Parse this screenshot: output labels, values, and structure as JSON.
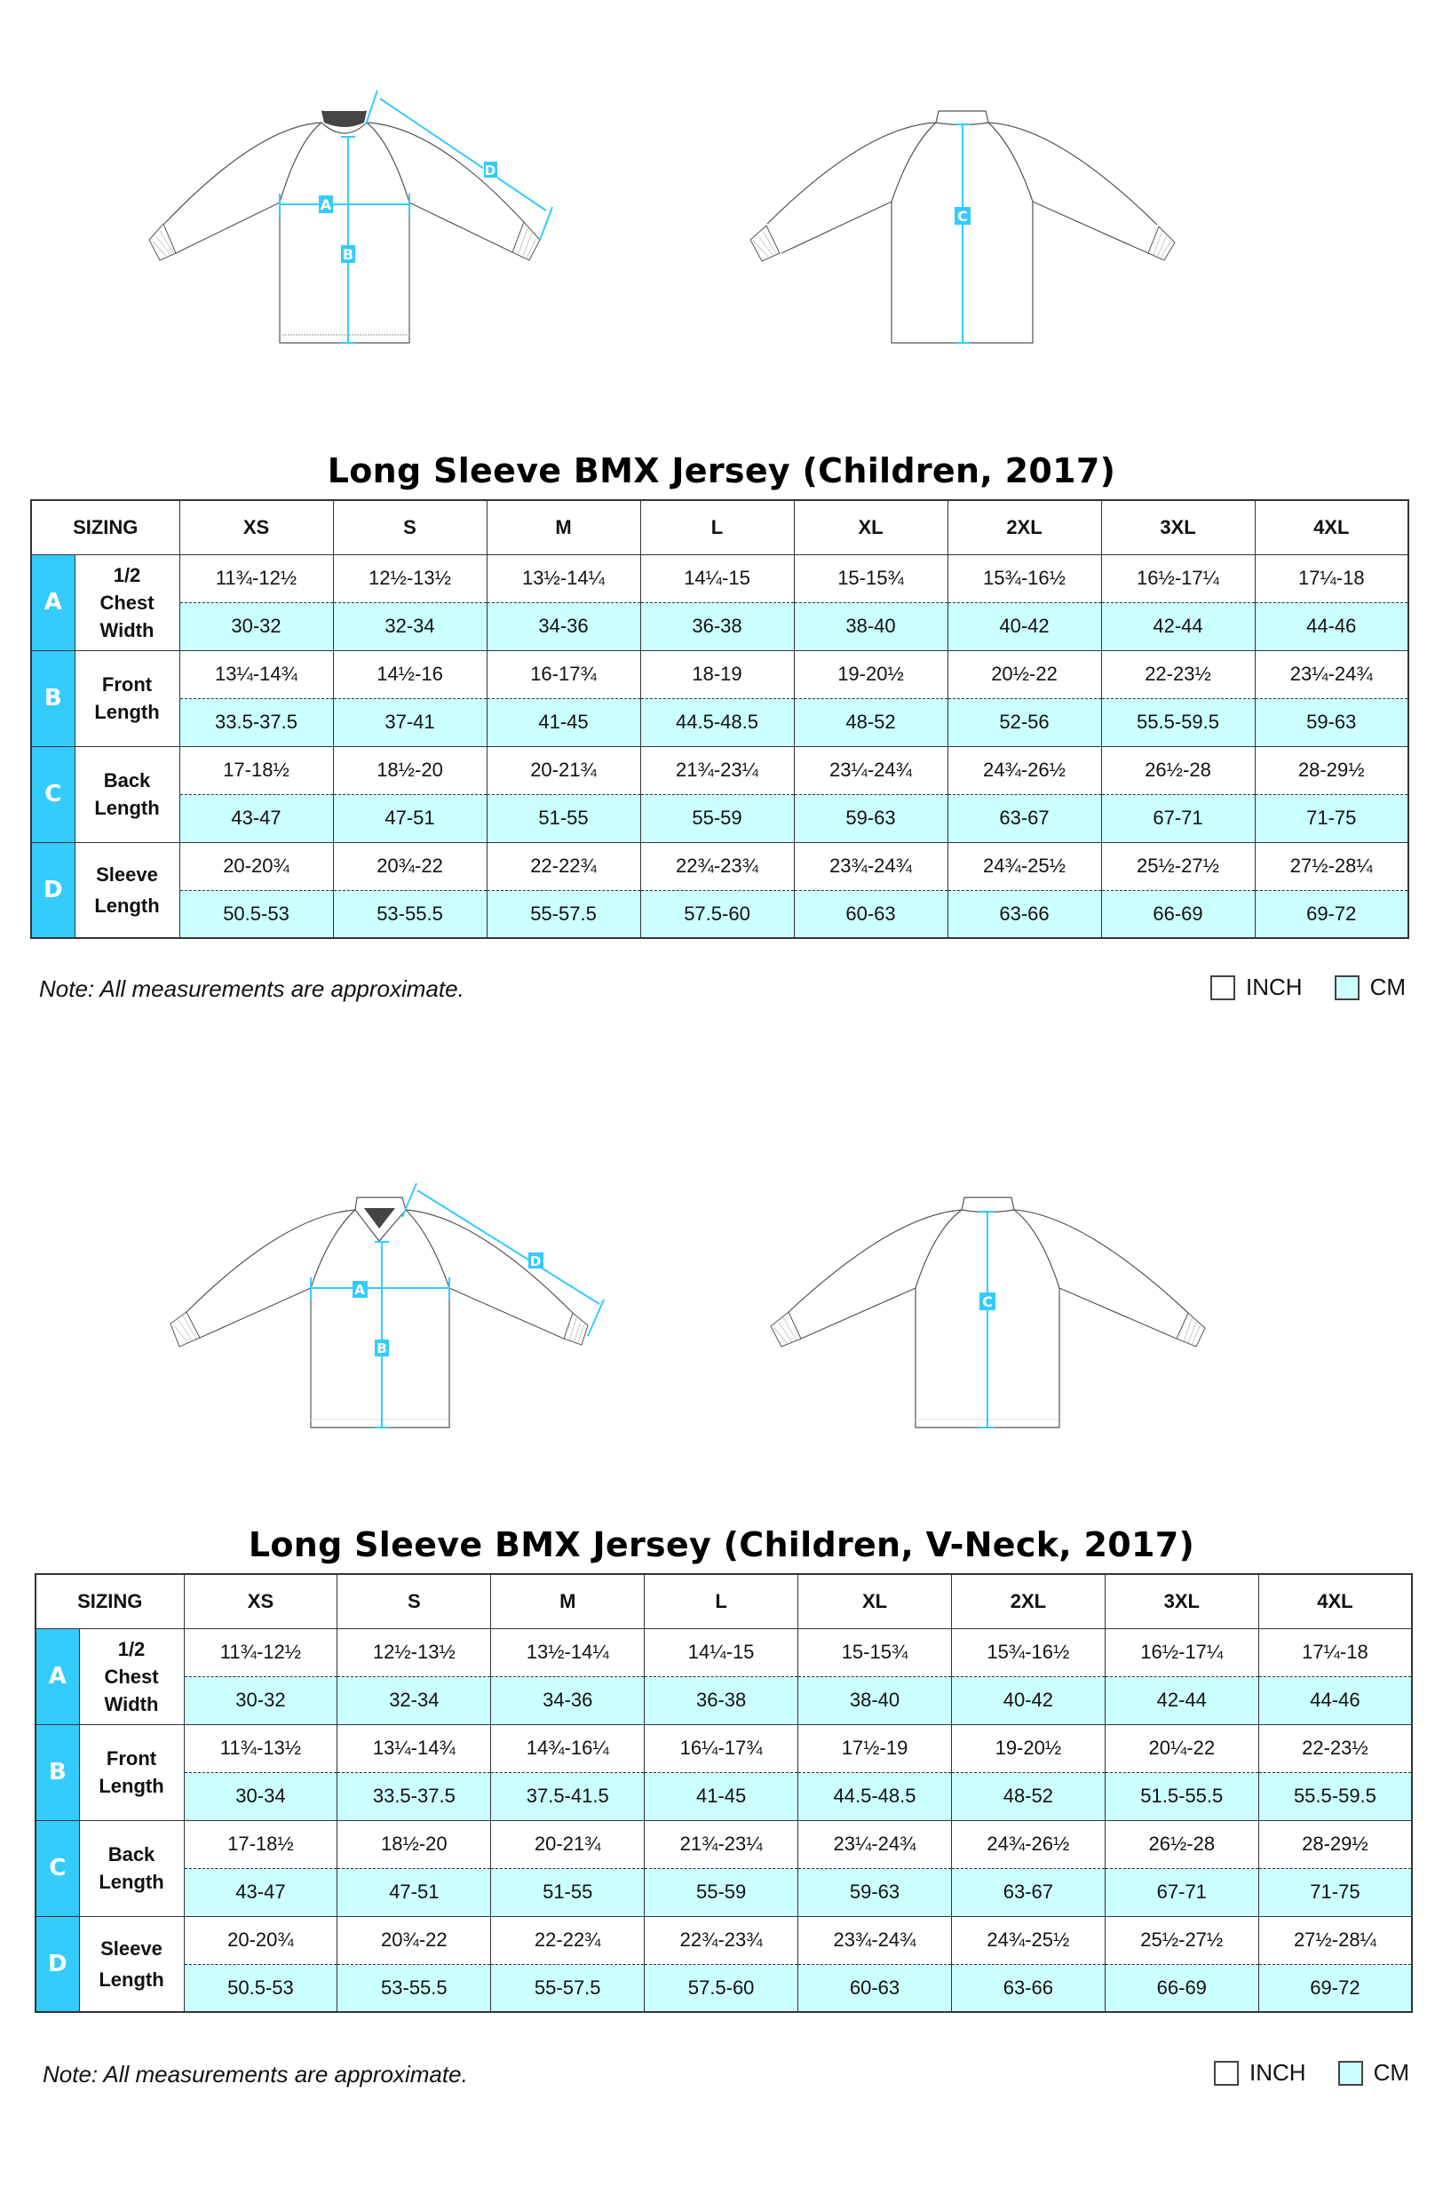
{
  "colors": {
    "accent_blue": "#33ccfd",
    "cm_row_bg": "#ccffff",
    "inch_row_bg": "#ffffff",
    "border": "#333333"
  },
  "diagrams": {
    "crew_neck": {
      "front": {
        "labels": [
          "A",
          "B",
          "D"
        ]
      },
      "back": {
        "labels": [
          "C"
        ]
      }
    },
    "v_neck": {
      "front": {
        "labels": [
          "A",
          "B",
          "D"
        ]
      },
      "back": {
        "labels": [
          "C"
        ]
      }
    }
  },
  "charts": [
    {
      "title": "Long Sleeve BMX Jersey (Children, 2017)",
      "header": {
        "sizing": "SIZING",
        "sizes": [
          "XS",
          "S",
          "M",
          "L",
          "XL",
          "2XL",
          "3XL",
          "4XL"
        ]
      },
      "rows": [
        {
          "letter": "A",
          "label_lines": [
            "1/2",
            "Chest",
            "Width"
          ],
          "inch": [
            "11¾-12½",
            "12½-13½",
            "13½-14¼",
            "14¼-15",
            "15-15¾",
            "15¾-16½",
            "16½-17¼",
            "17¼-18"
          ],
          "cm": [
            "30-32",
            "32-34",
            "34-36",
            "36-38",
            "38-40",
            "40-42",
            "42-44",
            "44-46"
          ]
        },
        {
          "letter": "B",
          "label_lines": [
            "Front",
            "Length"
          ],
          "inch": [
            "13¼-14¾",
            "14½-16",
            "16-17¾",
            "18-19",
            "19-20½",
            "20½-22",
            "22-23½",
            "23¼-24¾"
          ],
          "cm": [
            "33.5-37.5",
            "37-41",
            "41-45",
            "44.5-48.5",
            "48-52",
            "52-56",
            "55.5-59.5",
            "59-63"
          ]
        },
        {
          "letter": "C",
          "label_lines": [
            "Back",
            "Length"
          ],
          "inch": [
            "17-18½",
            "18½-20",
            "20-21¾",
            "21¾-23¼",
            "23¼-24¾",
            "24¾-26½",
            "26½-28",
            "28-29½"
          ],
          "cm": [
            "43-47",
            "47-51",
            "51-55",
            "55-59",
            "59-63",
            "63-67",
            "67-71",
            "71-75"
          ]
        },
        {
          "letter": "D",
          "label_lines": [
            "Sleeve",
            "Length"
          ],
          "inch": [
            "20-20¾",
            "20¾-22",
            "22-22¾",
            "22¾-23¾",
            "23¾-24¾",
            "24¾-25½",
            "25½-27½",
            "27½-28¼"
          ],
          "cm": [
            "50.5-53",
            "53-55.5",
            "55-57.5",
            "57.5-60",
            "60-63",
            "63-66",
            "66-69",
            "69-72"
          ]
        }
      ],
      "note": "Note: All measurements are approximate.",
      "legend": {
        "inch": "INCH",
        "cm": "CM"
      }
    },
    {
      "title": "Long Sleeve BMX Jersey (Children, V-Neck, 2017)",
      "header": {
        "sizing": "SIZING",
        "sizes": [
          "XS",
          "S",
          "M",
          "L",
          "XL",
          "2XL",
          "3XL",
          "4XL"
        ]
      },
      "rows": [
        {
          "letter": "A",
          "label_lines": [
            "1/2",
            "Chest",
            "Width"
          ],
          "inch": [
            "11¾-12½",
            "12½-13½",
            "13½-14¼",
            "14¼-15",
            "15-15¾",
            "15¾-16½",
            "16½-17¼",
            "17¼-18"
          ],
          "cm": [
            "30-32",
            "32-34",
            "34-36",
            "36-38",
            "38-40",
            "40-42",
            "42-44",
            "44-46"
          ]
        },
        {
          "letter": "B",
          "label_lines": [
            "Front",
            "Length"
          ],
          "inch": [
            "11¾-13½",
            "13¼-14¾",
            "14¾-16¼",
            "16¼-17¾",
            "17½-19",
            "19-20½",
            "20¼-22",
            "22-23½"
          ],
          "cm": [
            "30-34",
            "33.5-37.5",
            "37.5-41.5",
            "41-45",
            "44.5-48.5",
            "48-52",
            "51.5-55.5",
            "55.5-59.5"
          ]
        },
        {
          "letter": "C",
          "label_lines": [
            "Back",
            "Length"
          ],
          "inch": [
            "17-18½",
            "18½-20",
            "20-21¾",
            "21¾-23¼",
            "23¼-24¾",
            "24¾-26½",
            "26½-28",
            "28-29½"
          ],
          "cm": [
            "43-47",
            "47-51",
            "51-55",
            "55-59",
            "59-63",
            "63-67",
            "67-71",
            "71-75"
          ]
        },
        {
          "letter": "D",
          "label_lines": [
            "Sleeve",
            "Length"
          ],
          "inch": [
            "20-20¾",
            "20¾-22",
            "22-22¾",
            "22¾-23¾",
            "23¾-24¾",
            "24¾-25½",
            "25½-27½",
            "27½-28¼"
          ],
          "cm": [
            "50.5-53",
            "53-55.5",
            "55-57.5",
            "57.5-60",
            "60-63",
            "63-66",
            "66-69",
            "69-72"
          ]
        }
      ],
      "note": "Note: All measurements are approximate.",
      "legend": {
        "inch": "INCH",
        "cm": "CM"
      }
    }
  ]
}
